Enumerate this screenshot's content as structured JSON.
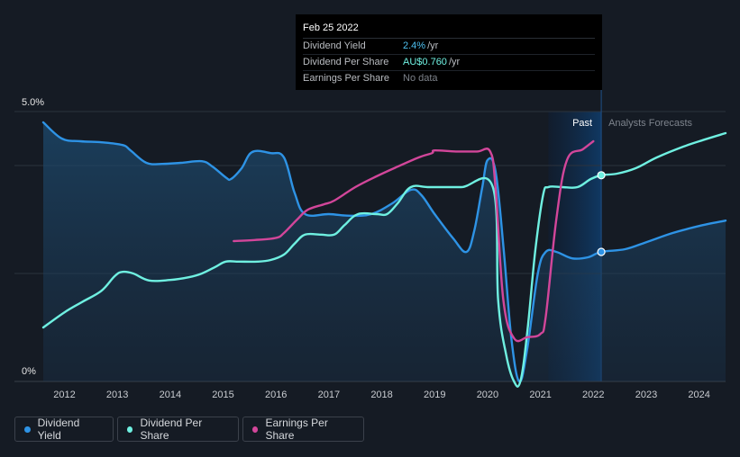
{
  "tooltip": {
    "date": "Feb 25 2022",
    "rows": [
      {
        "label": "Dividend Yield",
        "value": "2.4%",
        "unit": "/yr"
      },
      {
        "label": "Dividend Per Share",
        "value": "AU$0.760",
        "unit": "/yr"
      },
      {
        "label": "Earnings Per Share",
        "value": "No data",
        "unit": ""
      }
    ]
  },
  "legend": [
    {
      "label": "Dividend Yield",
      "color": "#2e93e5"
    },
    {
      "label": "Dividend Per Share",
      "color": "#6ff0e1"
    },
    {
      "label": "Earnings Per Share",
      "color": "#d2469a"
    }
  ],
  "chart_data": {
    "type": "line",
    "title": "",
    "xlabel": "",
    "ylabel": "",
    "x_ticks": [
      "2012",
      "2013",
      "2014",
      "2015",
      "2016",
      "2017",
      "2018",
      "2019",
      "2020",
      "2021",
      "2022",
      "2023",
      "2024"
    ],
    "y_tick_labels": [
      "5.0%",
      "0%"
    ],
    "ylim": [
      0,
      5.0
    ],
    "xlim": [
      2011.6,
      2024.5
    ],
    "past_label": "Past",
    "forecast_label": "Analysts Forecasts",
    "current_date": 2022.15,
    "highlight_band": [
      2021.15,
      2022.15
    ],
    "series": [
      {
        "name": "Dividend Yield",
        "color": "#2e93e5",
        "unit": "% (yield)",
        "points": [
          [
            2011.6,
            4.8
          ],
          [
            2011.95,
            4.5
          ],
          [
            2012.3,
            4.45
          ],
          [
            2012.7,
            4.43
          ],
          [
            2013.1,
            4.38
          ],
          [
            2013.25,
            4.28
          ],
          [
            2013.55,
            4.05
          ],
          [
            2013.85,
            4.03
          ],
          [
            2014.2,
            4.05
          ],
          [
            2014.6,
            4.08
          ],
          [
            2014.8,
            3.98
          ],
          [
            2015.05,
            3.78
          ],
          [
            2015.15,
            3.75
          ],
          [
            2015.35,
            3.95
          ],
          [
            2015.55,
            4.25
          ],
          [
            2015.9,
            4.23
          ],
          [
            2016.15,
            4.15
          ],
          [
            2016.35,
            3.5
          ],
          [
            2016.55,
            3.1
          ],
          [
            2017.0,
            3.1
          ],
          [
            2017.4,
            3.07
          ],
          [
            2017.8,
            3.1
          ],
          [
            2018.2,
            3.3
          ],
          [
            2018.55,
            3.55
          ],
          [
            2018.75,
            3.45
          ],
          [
            2019.0,
            3.1
          ],
          [
            2019.35,
            2.65
          ],
          [
            2019.6,
            2.4
          ],
          [
            2019.75,
            2.8
          ],
          [
            2019.9,
            3.6
          ],
          [
            2020.0,
            4.1
          ],
          [
            2020.15,
            3.9
          ],
          [
            2020.3,
            2.5
          ],
          [
            2020.45,
            0.8
          ],
          [
            2020.6,
            0.0
          ],
          [
            2020.75,
            0.6
          ],
          [
            2020.95,
            2.0
          ],
          [
            2021.1,
            2.4
          ],
          [
            2021.3,
            2.4
          ],
          [
            2021.6,
            2.28
          ],
          [
            2021.9,
            2.3
          ],
          [
            2022.15,
            2.4
          ],
          [
            2022.6,
            2.45
          ],
          [
            2023.0,
            2.58
          ],
          [
            2023.5,
            2.75
          ],
          [
            2024.0,
            2.88
          ],
          [
            2024.5,
            2.98
          ]
        ]
      },
      {
        "name": "Dividend Per Share",
        "color": "#6ff0e1",
        "unit": "AU$ (scaled)",
        "points": [
          [
            2011.6,
            1.0
          ],
          [
            2012.0,
            1.28
          ],
          [
            2012.35,
            1.48
          ],
          [
            2012.7,
            1.68
          ],
          [
            2012.95,
            1.95
          ],
          [
            2013.1,
            2.03
          ],
          [
            2013.3,
            2.0
          ],
          [
            2013.6,
            1.87
          ],
          [
            2014.0,
            1.88
          ],
          [
            2014.35,
            1.93
          ],
          [
            2014.6,
            2.0
          ],
          [
            2014.85,
            2.12
          ],
          [
            2015.05,
            2.22
          ],
          [
            2015.3,
            2.22
          ],
          [
            2015.65,
            2.22
          ],
          [
            2015.9,
            2.25
          ],
          [
            2016.15,
            2.35
          ],
          [
            2016.35,
            2.55
          ],
          [
            2016.55,
            2.72
          ],
          [
            2016.85,
            2.72
          ],
          [
            2017.1,
            2.72
          ],
          [
            2017.3,
            2.9
          ],
          [
            2017.55,
            3.1
          ],
          [
            2017.9,
            3.1
          ],
          [
            2018.1,
            3.1
          ],
          [
            2018.3,
            3.3
          ],
          [
            2018.55,
            3.6
          ],
          [
            2018.9,
            3.6
          ],
          [
            2019.5,
            3.6
          ],
          [
            2020.1,
            3.6
          ],
          [
            2020.2,
            1.5
          ],
          [
            2020.35,
            0.5
          ],
          [
            2020.5,
            0.0
          ],
          [
            2020.62,
            0.0
          ],
          [
            2020.75,
            0.9
          ],
          [
            2020.9,
            2.4
          ],
          [
            2021.05,
            3.45
          ],
          [
            2021.15,
            3.6
          ],
          [
            2021.4,
            3.6
          ],
          [
            2021.7,
            3.6
          ],
          [
            2021.95,
            3.75
          ],
          [
            2022.15,
            3.82
          ],
          [
            2022.45,
            3.85
          ],
          [
            2022.8,
            3.95
          ],
          [
            2023.2,
            4.15
          ],
          [
            2023.7,
            4.35
          ],
          [
            2024.1,
            4.48
          ],
          [
            2024.5,
            4.6
          ]
        ]
      },
      {
        "name": "Earnings Per Share",
        "color": "#d2469a",
        "unit": "AU$ (scaled)",
        "points": [
          [
            2015.2,
            2.6
          ],
          [
            2015.6,
            2.62
          ],
          [
            2016.0,
            2.66
          ],
          [
            2016.15,
            2.75
          ],
          [
            2016.4,
            3.0
          ],
          [
            2016.6,
            3.18
          ],
          [
            2016.9,
            3.28
          ],
          [
            2017.1,
            3.35
          ],
          [
            2017.5,
            3.6
          ],
          [
            2017.9,
            3.8
          ],
          [
            2018.3,
            3.98
          ],
          [
            2018.7,
            4.15
          ],
          [
            2018.95,
            4.23
          ],
          [
            2019.0,
            4.28
          ],
          [
            2019.4,
            4.26
          ],
          [
            2019.8,
            4.26
          ],
          [
            2020.05,
            4.26
          ],
          [
            2020.15,
            3.6
          ],
          [
            2020.3,
            1.5
          ],
          [
            2020.5,
            0.8
          ],
          [
            2020.75,
            0.82
          ],
          [
            2021.0,
            0.88
          ],
          [
            2021.1,
            1.2
          ],
          [
            2021.3,
            3.0
          ],
          [
            2021.5,
            4.1
          ],
          [
            2021.8,
            4.3
          ],
          [
            2022.0,
            4.45
          ]
        ]
      }
    ],
    "markers": [
      {
        "series": "Dividend Yield",
        "x": 2022.15,
        "y": 2.4
      },
      {
        "series": "Dividend Per Share",
        "x": 2022.15,
        "y": 3.82
      }
    ]
  }
}
